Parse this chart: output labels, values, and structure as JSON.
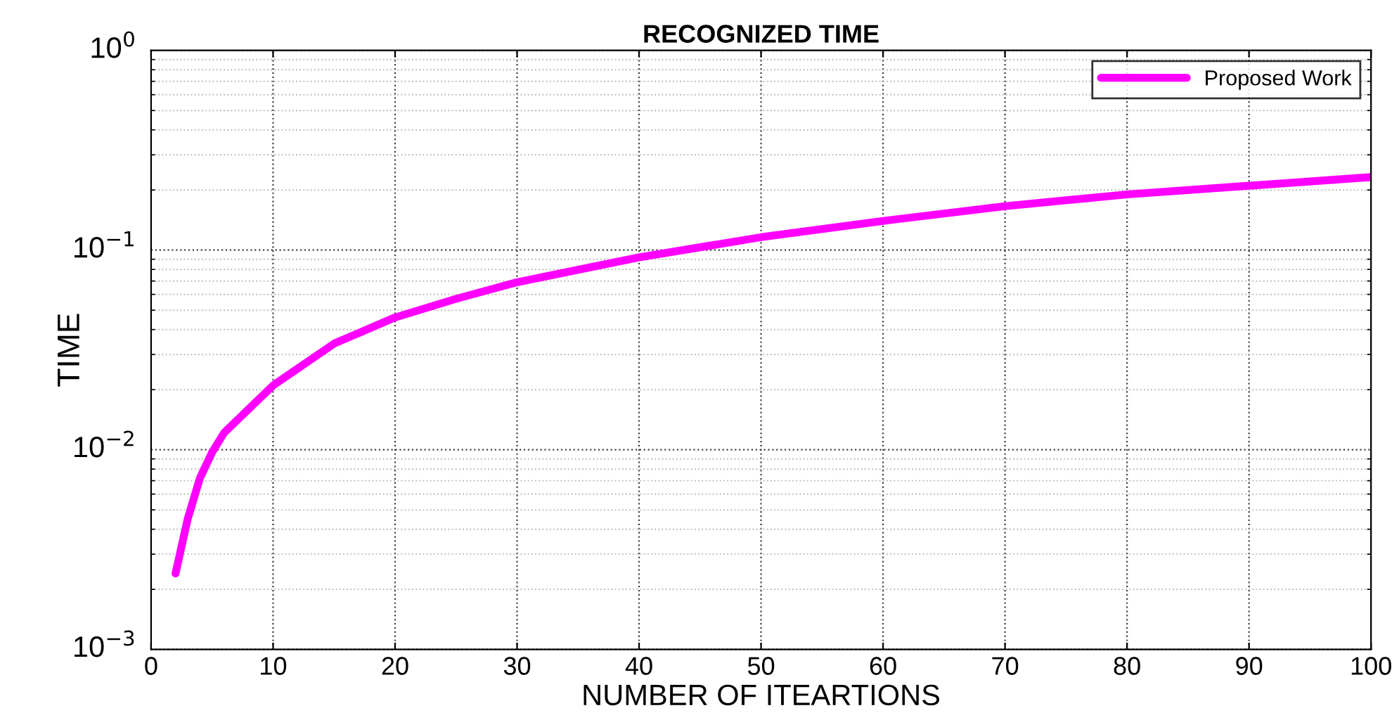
{
  "chart_data": {
    "type": "line",
    "title": "RECOGNIZED TIME",
    "xlabel": "NUMBER OF ITEARTIONS",
    "ylabel": "TIME",
    "x": [
      2,
      3,
      4,
      5,
      6,
      8,
      10,
      15,
      20,
      25,
      30,
      40,
      50,
      60,
      70,
      80,
      90,
      100
    ],
    "series": [
      {
        "name": "Proposed Work",
        "color": "#ff00ff",
        "values": [
          0.0024,
          0.0045,
          0.0072,
          0.0097,
          0.0122,
          0.016,
          0.021,
          0.034,
          0.046,
          0.057,
          0.069,
          0.092,
          0.116,
          0.14,
          0.166,
          0.19,
          0.21,
          0.232
        ]
      }
    ],
    "log": "y",
    "xlim": [
      0,
      100
    ],
    "xticks": [
      0,
      10,
      20,
      30,
      40,
      50,
      60,
      70,
      80,
      90,
      100
    ],
    "ylim": [
      0.001,
      1
    ],
    "yticks": [
      {
        "value": 0.001,
        "label": "10$^{−3}$"
      },
      {
        "value": 0.01,
        "label": "10$^{−2}$"
      },
      {
        "value": 0.1,
        "label": "10$^{−1}$"
      },
      {
        "value": 1,
        "label": "10$^{0}$"
      }
    ],
    "grid": true,
    "legend": "top right",
    "marker": "none",
    "line_style": "solid"
  }
}
